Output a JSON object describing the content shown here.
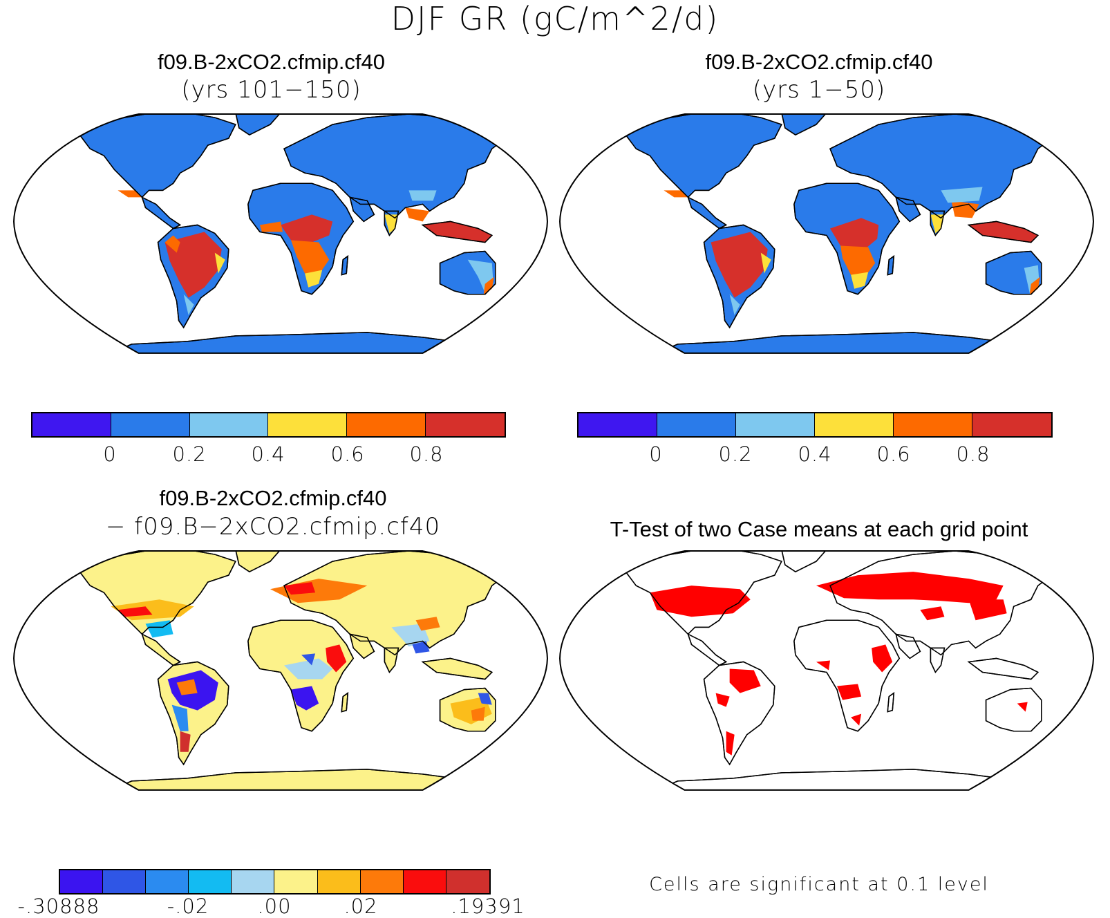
{
  "header": {
    "title": "DJF GR (gC/m^2/d)"
  },
  "panels": [
    {
      "title": "f09.B-2xCO2.cfmip.cf40",
      "subtitle": "(yrs 101−150)"
    },
    {
      "title": "f09.B-2xCO2.cfmip.cf40",
      "subtitle": "(yrs 1−50)"
    },
    {
      "title": "f09.B-2xCO2.cfmip.cf40",
      "subtitle": "− f09.B−2xCO2.cfmip.cf40"
    },
    {
      "title": "T-Test of two Case means at each grid point",
      "subtitle": ""
    }
  ],
  "colorbar_abs": {
    "colors": [
      "#3f17f0",
      "#2a7bea",
      "#7ec8ef",
      "#fde03a",
      "#fd6a00",
      "#d6302b"
    ],
    "ticks": [
      "0",
      "0.2",
      "0.4",
      "0.6",
      "0.8"
    ]
  },
  "colorbar_diff": {
    "colors": [
      "#3b14f0",
      "#2f56e6",
      "#2b8bf0",
      "#13bbf2",
      "#a7d6f0",
      "#fcf28a",
      "#fbbd1b",
      "#fd7a0a",
      "#fa0d0d",
      "#d0302d"
    ],
    "ticks": [
      "-.30888",
      "-.02",
      ".00",
      ".02",
      ".19391"
    ]
  },
  "colors": {
    "land_base_abs": "#2a7bea",
    "land_base_diff": "#fcf28a",
    "significant": "#ff0000",
    "ocean": "#ffffff"
  },
  "significance_note": "Cells are significant at 0.1 level"
}
